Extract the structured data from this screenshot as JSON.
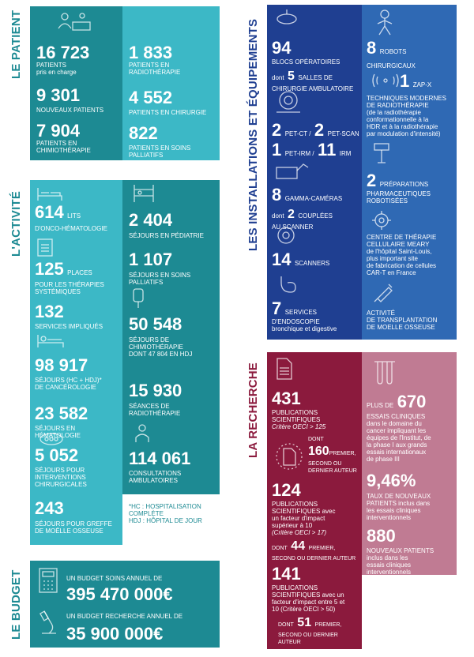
{
  "sections": {
    "patient": "LE PATIENT",
    "activite": "L'ACTIVITÉ",
    "budget": "LE BUDGET",
    "installations": "LES INSTALLATIONS ET ÉQUIPEMENTS",
    "recherche": "LA RECHERCHE"
  },
  "colors": {
    "teal_dark": "#1d8a93",
    "teal_light": "#3cb8c6",
    "navy": "#1f3f91",
    "blue": "#2f69b4",
    "wine": "#8b1a3d",
    "rose": "#c07b93"
  },
  "patient": {
    "left": [
      {
        "value": "16 723",
        "label1": "PATIENTS",
        "label2": "pris en charge"
      },
      {
        "value": "9 301",
        "label1": "NOUVEAUX PATIENTS",
        "label2": ""
      },
      {
        "value": "7 904",
        "label1": "PATIENTS EN",
        "label2": "CHIMIOTHÉRAPIE"
      }
    ],
    "right": [
      {
        "value": "1 833",
        "label1": "PATIENTS EN",
        "label2": "RADIOTHÉRAPIE"
      },
      {
        "value": "4 552",
        "label1": "PATIENTS EN CHIRURGIE",
        "label2": ""
      },
      {
        "value": "822",
        "label1": "PATIENTS EN SOINS",
        "label2": "PALLIATIFS"
      }
    ]
  },
  "activite": {
    "left": [
      {
        "value": "614",
        "suffix": "LITS",
        "label1": "D'ONCO-HÉMATOLOGIE",
        "label2": ""
      },
      {
        "value": "125",
        "suffix": "PLACES",
        "label1": "POUR LES THÉRAPIES",
        "label2": "SYSTÉMIQUES"
      },
      {
        "value": "132",
        "suffix": "",
        "label1": "SERVICES IMPLIQUÉS",
        "label2": ""
      },
      {
        "value": "98 917",
        "suffix": "",
        "label1": "SÉJOURS (HC + HDJ)*",
        "label2": "DE CANCÉROLOGIE"
      },
      {
        "value": "23 582",
        "suffix": "",
        "label1": "SÉJOURS EN HÉMATOLOGIE",
        "label2": ""
      },
      {
        "value": "5 052",
        "suffix": "",
        "label1": "SÉJOURS POUR",
        "label2": "INTERVENTIONS",
        "label3": "CHIRURGICALES"
      },
      {
        "value": "243",
        "suffix": "",
        "label1": "SÉJOURS POUR GREFFE",
        "label2": "DE MOËLLE OSSEUSE"
      }
    ],
    "right": [
      {
        "value": "2 404",
        "label1": "SÉJOURS EN PÉDIATRIE",
        "label2": "",
        "label3": ""
      },
      {
        "value": "1 107",
        "label1": "SÉJOURS EN SOINS",
        "label2": "PALLIATIFS",
        "label3": ""
      },
      {
        "value": "50 548",
        "label1": "SÉJOURS DE",
        "label2": "CHIMIOTHÉRAPIE",
        "label3": "DONT 47 804 EN HDJ"
      },
      {
        "value": "15 930",
        "label1": "SÉANCES DE",
        "label2": "RADIOTHÉRAPIE",
        "label3": ""
      },
      {
        "value": "114 061",
        "label1": "CONSULTATIONS",
        "label2": "AMBULATOIRES",
        "label3": ""
      }
    ],
    "footnote1": "*HC : HOSPITALISATION",
    "footnote2": "COMPLÈTE",
    "footnote3": "HDJ : HÔPITAL DE JOUR"
  },
  "budget": {
    "soins_label": "UN BUDGET SOINS ANNUEL DE",
    "soins_value": "395 470 000€",
    "recherche_label": "UN BUDGET RECHERCHE ANNUEL DE",
    "recherche_value": "35 900 000€"
  },
  "installations": {
    "blocs_value": "94",
    "blocs_label": "BLOCS OPÉRATOIRES",
    "blocs_dont": "dont",
    "blocs_amb_value": "5",
    "blocs_amb_label1": "SALLES DE",
    "blocs_amb_label2": "CHIRURGIE AMBULATOIRE",
    "petct_value": "2",
    "petct_label": "PET-CT /",
    "petscan_value": "2",
    "petscan_label": "PET-SCAN",
    "petirm_value": "1",
    "petirm_label": "PET-IRM /",
    "irm_value": "11",
    "irm_label": "IRM",
    "gamma_value": "8",
    "gamma_label": "GAMMA-CAMÉRAS",
    "gamma_dont": "dont",
    "gamma_coupl_value": "2",
    "gamma_coupl_label1": "COUPLÉES",
    "gamma_coupl_label2": "AU SCANNER",
    "scanners_value": "14",
    "scanners_label": "SCANNERS",
    "endo_value": "7",
    "endo_label1": "SERVICES",
    "endo_label2": "D'ENDOSCOPIE",
    "endo_label3": "bronchique et digestive",
    "robots_value": "8",
    "robots_label": "ROBOTS CHIRURGICAUX",
    "zapx_value": "1",
    "zapx_label": "ZAP-X",
    "techniques_lines": [
      "TECHNIQUES MODERNES",
      "DE RADIOTHÉRAPIE",
      "(de la radiothérapie",
      "conformationnelle à la",
      "HDR et à la radiothérapie",
      "par modulation d'intensité)"
    ],
    "prep_value": "2",
    "prep_label1": "PRÉPARATIONS",
    "prep_label2": "PHARMACEUTIQUES",
    "prep_label3": "ROBOTISÉES",
    "meary_lines": [
      "CENTRE DE THÉRAPIE",
      "CELLULAIRE MEARY",
      "de l'hôpital Saint-Louis,",
      "plus important site",
      "de fabrication de cellules",
      "CAR-T en France"
    ],
    "greffe_lines": [
      "ACTIVITÉ",
      "DE TRANSPLANTATION",
      "DE MOELLE OSSEUSE"
    ]
  },
  "recherche": {
    "p431_value": "431",
    "p431_label1": "PUBLICATIONS",
    "p431_label2": "SCIENTIFIQUES",
    "p431_label3": "Critère OECI > 125",
    "p160_dont": "DONT",
    "p160_value": "160",
    "p160_label1": "PREMIER,",
    "p160_label2": "SECOND OU",
    "p160_label3": "DERNIER AUTEUR",
    "p124_value": "124",
    "p124_lines": [
      "PUBLICATIONS",
      "SCIENTIFIQUES avec",
      "un facteur d'impact",
      "supérieur à 10"
    ],
    "p124_critere": "(Critère OECI > 17)",
    "p44_dont": "DONT",
    "p44_value": "44",
    "p44_label1": "PREMIER,",
    "p44_label2": "SECOND OU DERNIER AUTEUR",
    "p141_value": "141",
    "p141_lines": [
      "PUBLICATIONS",
      "SCIENTIFIQUES avec un",
      "facteur d'impact entre 5 et",
      "10 (Critère OECI > 50)"
    ],
    "p51_dont": "DONT",
    "p51_value": "51",
    "p51_label1": "PREMIER,",
    "p51_label2": "SECOND OU DERNIER AUTEUR",
    "essais_prefix": "PLUS DE",
    "essais_value": "670",
    "essais_lines": [
      "ESSAIS CLINIQUES",
      "dans le domaine du",
      "cancer impliquant les",
      "équipes de l'Institut, de",
      "la phase I aux grands",
      "essais internationaux",
      "de phase III"
    ],
    "taux_value": "9,46%",
    "taux_lines": [
      "TAUX DE NOUVEAUX",
      "PATIENTS inclus dans",
      "les essais cliniques",
      "interventionnels"
    ],
    "np_value": "880",
    "np_lines": [
      "NOUVEAUX PATIENTS",
      "inclus dans les",
      "essais cliniques",
      "interventionnels"
    ]
  }
}
